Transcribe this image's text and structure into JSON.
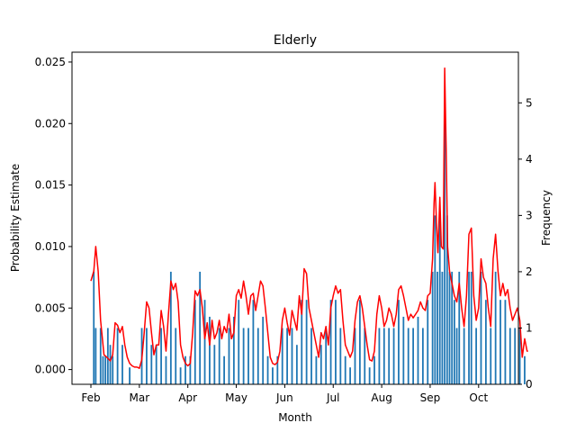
{
  "chart_data": {
    "type": "bar",
    "title": "Elderly",
    "xlabel": "Month",
    "ylabel": "Probability Estimate",
    "ylabel_right": "Frequency",
    "x_ticks": [
      "Feb",
      "Mar",
      "Apr",
      "May",
      "Jun",
      "Jul",
      "Aug",
      "Sep",
      "Oct"
    ],
    "ylim_left": [
      -0.0012,
      0.0258
    ],
    "ylim_right": [
      0,
      5.9
    ],
    "y_ticks_left": [
      "0.000",
      "0.005",
      "0.010",
      "0.015",
      "0.020",
      "0.025"
    ],
    "y_ticks_right": [
      "0",
      "1",
      "2",
      "3",
      "4",
      "5"
    ],
    "grid": false,
    "colors": {
      "line": "#ff0000",
      "bar": "#1f77b4"
    },
    "series": [
      {
        "type": "line",
        "axis": "left",
        "points": [
          [
            0.0,
            0.0072
          ],
          [
            0.06,
            0.008
          ],
          [
            0.1,
            0.01
          ],
          [
            0.15,
            0.008
          ],
          [
            0.2,
            0.004
          ],
          [
            0.27,
            0.0012
          ],
          [
            0.33,
            0.001
          ],
          [
            0.4,
            0.0007
          ],
          [
            0.45,
            0.0012
          ],
          [
            0.5,
            0.0038
          ],
          [
            0.55,
            0.0036
          ],
          [
            0.6,
            0.003
          ],
          [
            0.65,
            0.0035
          ],
          [
            0.7,
            0.002
          ],
          [
            0.75,
            0.001
          ],
          [
            0.8,
            0.0005
          ],
          [
            0.85,
            0.0003
          ],
          [
            0.9,
            0.0002
          ],
          [
            0.95,
            0.0002
          ],
          [
            1.0,
            0.0001
          ],
          [
            1.05,
            0.0008
          ],
          [
            1.1,
            0.003
          ],
          [
            1.15,
            0.0055
          ],
          [
            1.2,
            0.005
          ],
          [
            1.25,
            0.003
          ],
          [
            1.3,
            0.0012
          ],
          [
            1.35,
            0.002
          ],
          [
            1.4,
            0.002
          ],
          [
            1.45,
            0.0048
          ],
          [
            1.5,
            0.0035
          ],
          [
            1.55,
            0.0015
          ],
          [
            1.6,
            0.0045
          ],
          [
            1.65,
            0.0072
          ],
          [
            1.7,
            0.0065
          ],
          [
            1.75,
            0.007
          ],
          [
            1.8,
            0.0055
          ],
          [
            1.85,
            0.002
          ],
          [
            1.9,
            0.001
          ],
          [
            1.95,
            0.0005
          ],
          [
            2.0,
            0.0003
          ],
          [
            2.05,
            0.0005
          ],
          [
            2.1,
            0.003
          ],
          [
            2.15,
            0.0064
          ],
          [
            2.2,
            0.006
          ],
          [
            2.25,
            0.0065
          ],
          [
            2.3,
            0.005
          ],
          [
            2.35,
            0.0025
          ],
          [
            2.4,
            0.0038
          ],
          [
            2.45,
            0.002
          ],
          [
            2.5,
            0.004
          ],
          [
            2.55,
            0.0025
          ],
          [
            2.6,
            0.003
          ],
          [
            2.65,
            0.004
          ],
          [
            2.7,
            0.0025
          ],
          [
            2.75,
            0.0035
          ],
          [
            2.8,
            0.003
          ],
          [
            2.85,
            0.0045
          ],
          [
            2.9,
            0.0025
          ],
          [
            2.95,
            0.003
          ],
          [
            3.0,
            0.006
          ],
          [
            3.05,
            0.0065
          ],
          [
            3.1,
            0.0058
          ],
          [
            3.15,
            0.0072
          ],
          [
            3.2,
            0.006
          ],
          [
            3.25,
            0.0045
          ],
          [
            3.3,
            0.006
          ],
          [
            3.35,
            0.0062
          ],
          [
            3.4,
            0.0048
          ],
          [
            3.45,
            0.006
          ],
          [
            3.5,
            0.0072
          ],
          [
            3.55,
            0.0068
          ],
          [
            3.6,
            0.005
          ],
          [
            3.65,
            0.003
          ],
          [
            3.7,
            0.001
          ],
          [
            3.75,
            0.0005
          ],
          [
            3.8,
            0.0004
          ],
          [
            3.85,
            0.0006
          ],
          [
            3.9,
            0.0015
          ],
          [
            3.95,
            0.004
          ],
          [
            4.0,
            0.005
          ],
          [
            4.05,
            0.0038
          ],
          [
            4.1,
            0.0028
          ],
          [
            4.15,
            0.0048
          ],
          [
            4.2,
            0.004
          ],
          [
            4.25,
            0.0032
          ],
          [
            4.3,
            0.006
          ],
          [
            4.35,
            0.0045
          ],
          [
            4.4,
            0.0082
          ],
          [
            4.45,
            0.0078
          ],
          [
            4.5,
            0.005
          ],
          [
            4.55,
            0.004
          ],
          [
            4.6,
            0.003
          ],
          [
            4.65,
            0.002
          ],
          [
            4.7,
            0.001
          ],
          [
            4.75,
            0.003
          ],
          [
            4.8,
            0.0025
          ],
          [
            4.85,
            0.0035
          ],
          [
            4.9,
            0.002
          ],
          [
            4.95,
            0.005
          ],
          [
            5.0,
            0.006
          ],
          [
            5.05,
            0.0068
          ],
          [
            5.1,
            0.0062
          ],
          [
            5.15,
            0.0065
          ],
          [
            5.2,
            0.004
          ],
          [
            5.25,
            0.002
          ],
          [
            5.3,
            0.0015
          ],
          [
            5.35,
            0.001
          ],
          [
            5.4,
            0.0015
          ],
          [
            5.45,
            0.004
          ],
          [
            5.5,
            0.0055
          ],
          [
            5.55,
            0.006
          ],
          [
            5.6,
            0.005
          ],
          [
            5.65,
            0.0035
          ],
          [
            5.7,
            0.002
          ],
          [
            5.75,
            0.0008
          ],
          [
            5.8,
            0.0007
          ],
          [
            5.85,
            0.0015
          ],
          [
            5.9,
            0.0045
          ],
          [
            5.95,
            0.006
          ],
          [
            6.0,
            0.005
          ],
          [
            6.05,
            0.0035
          ],
          [
            6.1,
            0.004
          ],
          [
            6.15,
            0.005
          ],
          [
            6.2,
            0.0045
          ],
          [
            6.25,
            0.0035
          ],
          [
            6.3,
            0.0045
          ],
          [
            6.35,
            0.0065
          ],
          [
            6.4,
            0.0068
          ],
          [
            6.45,
            0.006
          ],
          [
            6.5,
            0.005
          ],
          [
            6.55,
            0.004
          ],
          [
            6.6,
            0.0045
          ],
          [
            6.65,
            0.0042
          ],
          [
            6.7,
            0.0045
          ],
          [
            6.75,
            0.0048
          ],
          [
            6.8,
            0.0055
          ],
          [
            6.85,
            0.005
          ],
          [
            6.9,
            0.0048
          ],
          [
            6.95,
            0.006
          ],
          [
            7.0,
            0.0062
          ],
          [
            7.05,
            0.009
          ],
          [
            7.08,
            0.0135
          ],
          [
            7.1,
            0.0152
          ],
          [
            7.13,
            0.012
          ],
          [
            7.16,
            0.0095
          ],
          [
            7.2,
            0.014
          ],
          [
            7.23,
            0.01
          ],
          [
            7.27,
            0.0098
          ],
          [
            7.3,
            0.0245
          ],
          [
            7.33,
            0.018
          ],
          [
            7.36,
            0.01
          ],
          [
            7.4,
            0.008
          ],
          [
            7.45,
            0.007
          ],
          [
            7.5,
            0.006
          ],
          [
            7.55,
            0.0055
          ],
          [
            7.6,
            0.007
          ],
          [
            7.65,
            0.005
          ],
          [
            7.7,
            0.0035
          ],
          [
            7.75,
            0.006
          ],
          [
            7.8,
            0.011
          ],
          [
            7.85,
            0.0115
          ],
          [
            7.9,
            0.006
          ],
          [
            7.95,
            0.004
          ],
          [
            8.0,
            0.005
          ],
          [
            8.05,
            0.009
          ],
          [
            8.1,
            0.0075
          ],
          [
            8.15,
            0.007
          ],
          [
            8.2,
            0.005
          ],
          [
            8.25,
            0.0035
          ],
          [
            8.3,
            0.009
          ],
          [
            8.35,
            0.011
          ],
          [
            8.4,
            0.008
          ],
          [
            8.45,
            0.006
          ],
          [
            8.5,
            0.007
          ],
          [
            8.55,
            0.006
          ],
          [
            8.6,
            0.0065
          ],
          [
            8.65,
            0.005
          ],
          [
            8.7,
            0.004
          ],
          [
            8.75,
            0.0045
          ],
          [
            8.8,
            0.005
          ],
          [
            8.85,
            0.004
          ],
          [
            8.9,
            0.001
          ],
          [
            8.95,
            0.0025
          ],
          [
            9.0,
            0.0015
          ],
          [
            9.02,
            0.0015
          ]
        ]
      },
      {
        "type": "bar",
        "axis": "right",
        "name": "",
        "points": [
          [
            0.06,
            2
          ],
          [
            0.1,
            1
          ],
          [
            0.2,
            1
          ],
          [
            0.25,
            0.5
          ],
          [
            0.3,
            0.5
          ],
          [
            0.35,
            1
          ],
          [
            0.4,
            0.7
          ],
          [
            0.45,
            0.5
          ],
          [
            0.55,
            1
          ],
          [
            0.65,
            0.7
          ],
          [
            0.8,
            0.3
          ],
          [
            1.05,
            1
          ],
          [
            1.15,
            1
          ],
          [
            1.25,
            0.7
          ],
          [
            1.35,
            0.7
          ],
          [
            1.45,
            1
          ],
          [
            1.55,
            0.5
          ],
          [
            1.65,
            2
          ],
          [
            1.75,
            1
          ],
          [
            1.85,
            0.3
          ],
          [
            1.95,
            0.5
          ],
          [
            2.05,
            0.5
          ],
          [
            2.15,
            1.5
          ],
          [
            2.25,
            2
          ],
          [
            2.35,
            1.5
          ],
          [
            2.45,
            1.2
          ],
          [
            2.55,
            0.7
          ],
          [
            2.65,
            1
          ],
          [
            2.75,
            0.5
          ],
          [
            2.85,
            1
          ],
          [
            2.95,
            1.2
          ],
          [
            3.05,
            1.5
          ],
          [
            3.15,
            1
          ],
          [
            3.25,
            1
          ],
          [
            3.35,
            1.5
          ],
          [
            3.45,
            1
          ],
          [
            3.55,
            1.2
          ],
          [
            3.65,
            0.5
          ],
          [
            3.75,
            0.3
          ],
          [
            3.85,
            0.5
          ],
          [
            3.95,
            1
          ],
          [
            4.05,
            1
          ],
          [
            4.15,
            1
          ],
          [
            4.25,
            0.7
          ],
          [
            4.35,
            1.5
          ],
          [
            4.45,
            1.5
          ],
          [
            4.55,
            1
          ],
          [
            4.65,
            0.5
          ],
          [
            4.75,
            0.7
          ],
          [
            4.85,
            1
          ],
          [
            4.95,
            1.5
          ],
          [
            5.05,
            1.5
          ],
          [
            5.15,
            1
          ],
          [
            5.25,
            0.5
          ],
          [
            5.35,
            0.3
          ],
          [
            5.45,
            1
          ],
          [
            5.55,
            1.5
          ],
          [
            5.65,
            1
          ],
          [
            5.75,
            0.3
          ],
          [
            5.85,
            0.5
          ],
          [
            5.95,
            1
          ],
          [
            6.05,
            1
          ],
          [
            6.15,
            1
          ],
          [
            6.25,
            1
          ],
          [
            6.35,
            1.5
          ],
          [
            6.45,
            1.2
          ],
          [
            6.55,
            1
          ],
          [
            6.65,
            1
          ],
          [
            6.75,
            1.2
          ],
          [
            6.85,
            1
          ],
          [
            6.95,
            1.5
          ],
          [
            7.05,
            2
          ],
          [
            7.1,
            3
          ],
          [
            7.15,
            2
          ],
          [
            7.2,
            3
          ],
          [
            7.25,
            2
          ],
          [
            7.3,
            5
          ],
          [
            7.35,
            3
          ],
          [
            7.4,
            2
          ],
          [
            7.45,
            2
          ],
          [
            7.5,
            1.5
          ],
          [
            7.55,
            1
          ],
          [
            7.6,
            2
          ],
          [
            7.7,
            1
          ],
          [
            7.8,
            2
          ],
          [
            7.85,
            2
          ],
          [
            7.95,
            1
          ],
          [
            8.05,
            2
          ],
          [
            8.15,
            1.5
          ],
          [
            8.25,
            1
          ],
          [
            8.35,
            2
          ],
          [
            8.45,
            1.5
          ],
          [
            8.55,
            1.5
          ],
          [
            8.65,
            1
          ],
          [
            8.75,
            1
          ],
          [
            8.85,
            1
          ],
          [
            8.95,
            0.5
          ]
        ]
      }
    ]
  }
}
